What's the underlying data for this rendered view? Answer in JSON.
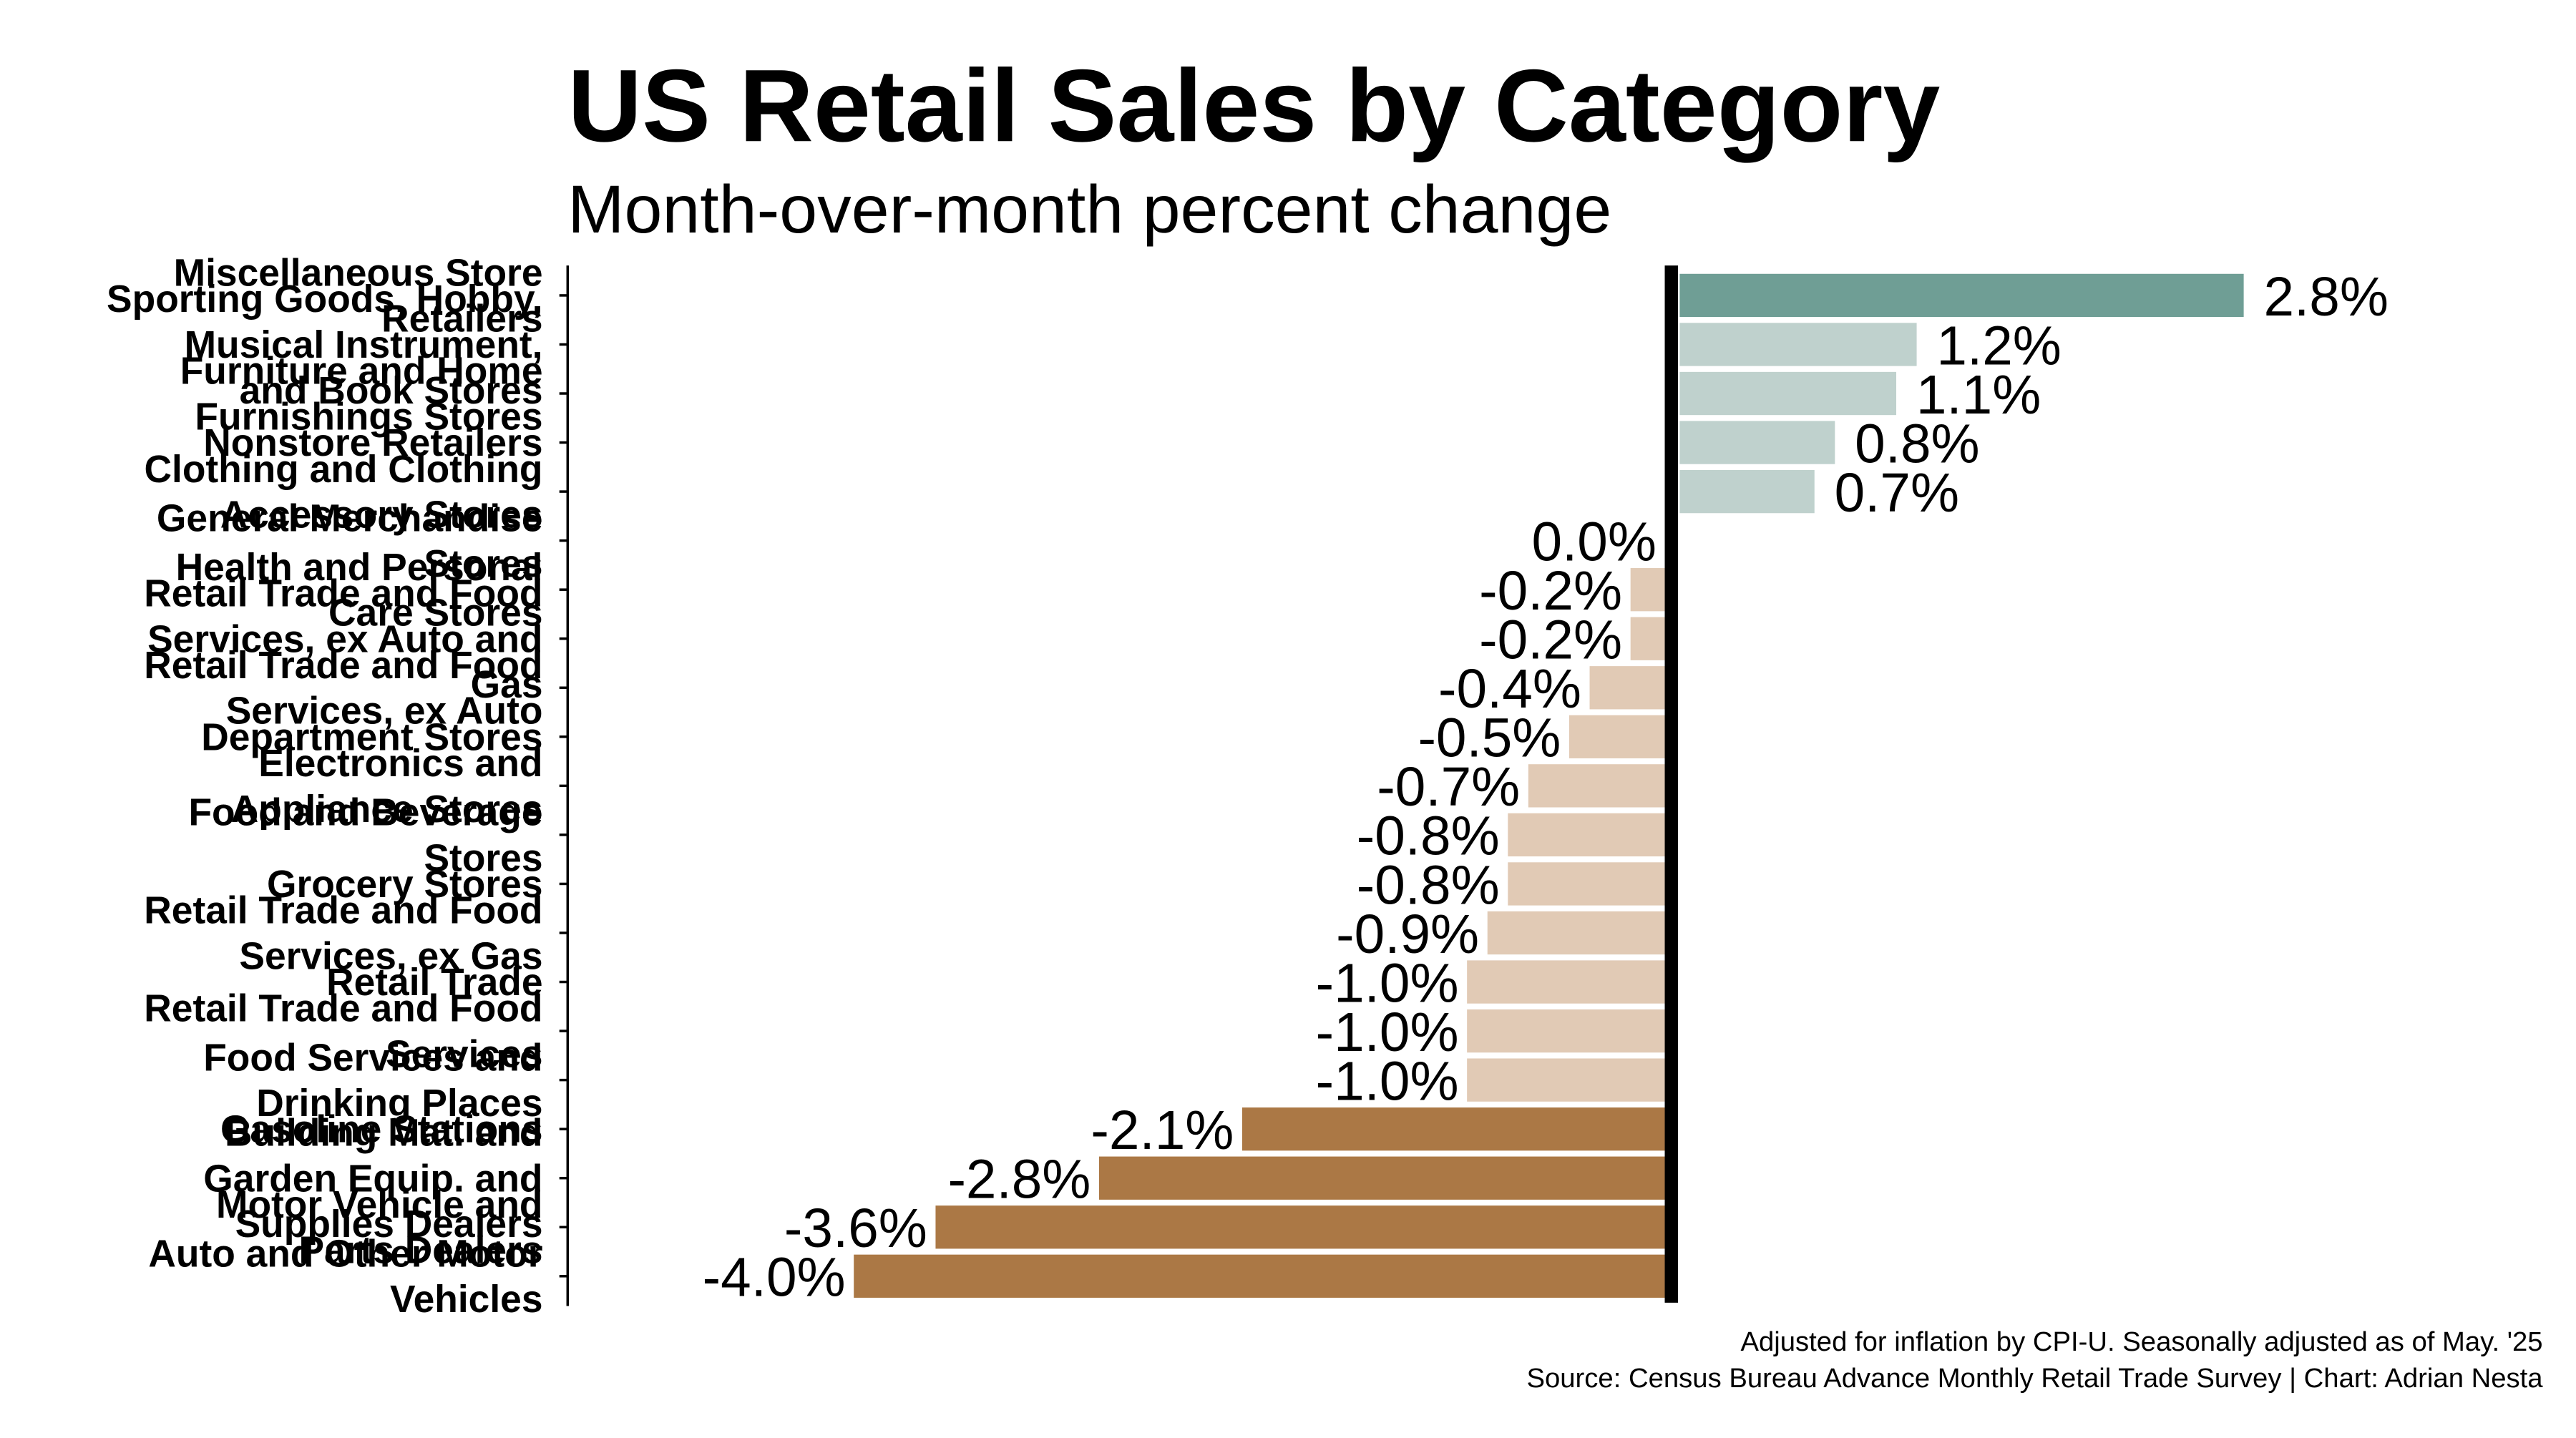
{
  "chart_data": {
    "type": "bar",
    "orientation": "horizontal",
    "title": "US Retail Sales by Category",
    "subtitle": "Month-over-month percent change",
    "categories": [
      "Miscellaneous Store Retailers",
      "Sporting Goods, Hobby, Musical Instrument, and Book Stores",
      "Furniture and Home Furnishings Stores",
      "Nonstore Retailers",
      "Clothing and Clothing Accessory Stores",
      "General Merchandise Stores",
      "Health and Personal Care Stores",
      "Retail Trade and Food Services, ex Auto and Gas",
      "Retail Trade and Food Services, ex Auto",
      "Department Stores",
      "Electronics and Appliance Stores",
      "Food and Beverage Stores",
      "Grocery Stores",
      "Retail Trade and Food Services, ex Gas",
      "Retail Trade",
      "Retail Trade and Food Services",
      "Food Services and Drinking Places",
      "Gasoline Stations",
      "Building Mat. and Garden Equip. and Supplies Dealers",
      "Motor Vehicle and Parts Dealers",
      "Auto and Other Motor Vehicles"
    ],
    "values": [
      2.8,
      1.2,
      1.1,
      0.8,
      0.7,
      0.0,
      -0.2,
      -0.2,
      -0.4,
      -0.5,
      -0.7,
      -0.8,
      -0.8,
      -0.9,
      -1.0,
      -1.0,
      -1.0,
      -2.1,
      -2.8,
      -3.6,
      -4.0
    ],
    "value_labels": [
      "2.8%",
      "1.2%",
      "1.1%",
      "0.8%",
      "0.7%",
      "0.0%",
      "-0.2%",
      "-0.2%",
      "-0.4%",
      "-0.5%",
      "-0.7%",
      "-0.8%",
      "-0.8%",
      "-0.9%",
      "-1.0%",
      "-1.0%",
      "-1.0%",
      "-2.1%",
      "-2.8%",
      "-3.6%",
      "-4.0%"
    ],
    "colors": [
      "#6f9e95",
      "#bfd1cd",
      "#bfd1cd",
      "#bfd1cd",
      "#bfd1cd",
      "#e1cab5",
      "#e1cab5",
      "#e1cab5",
      "#e1cab5",
      "#e1cab5",
      "#e1cab5",
      "#e1cab5",
      "#e1cab5",
      "#e1cab5",
      "#e1cab5",
      "#e1cab5",
      "#e1cab5",
      "#ab7845",
      "#ab7845",
      "#ab7845",
      "#ab7845"
    ],
    "xlim": [
      -5.4,
      3.5
    ],
    "notes": [
      "Adjusted for inflation by CPI-U. Seasonally adjusted as of May. '25",
      "Source: Census Bureau Advance Monthly Retail Trade Survey | Chart: Adrian Nesta"
    ]
  }
}
